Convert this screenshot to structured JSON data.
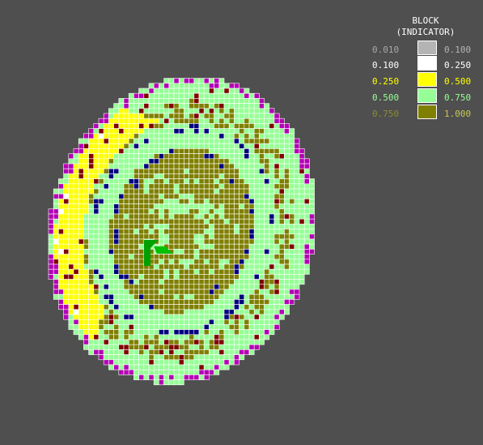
{
  "legend": {
    "title": "BLOCK",
    "subtitle": "(INDICATOR)",
    "entries": [
      {
        "min": "0.010",
        "max": "0.100",
        "color": "#b4b4b4"
      },
      {
        "min": "0.100",
        "max": "0.250",
        "color": "#ffffff"
      },
      {
        "min": "0.250",
        "max": "0.500",
        "color": "#ffff00"
      },
      {
        "min": "0.500",
        "max": "0.750",
        "color": "#96ff96"
      },
      {
        "min": "0.750",
        "max": "1.000",
        "color": "#7f7f00"
      }
    ]
  },
  "feature_colors": {
    "high_indicator_zone": "#7f7f00",
    "mid_indicator_zone": "#96ff96",
    "low_indicator_zone": "#ffff00",
    "very_low_zone": "#ffffff",
    "magenta_blocks": "#b400b4",
    "dark_red_blocks": "#800000",
    "navy_blocks": "#00007f",
    "green_marker": "#00a000",
    "cell_grid": "#ffffff"
  }
}
